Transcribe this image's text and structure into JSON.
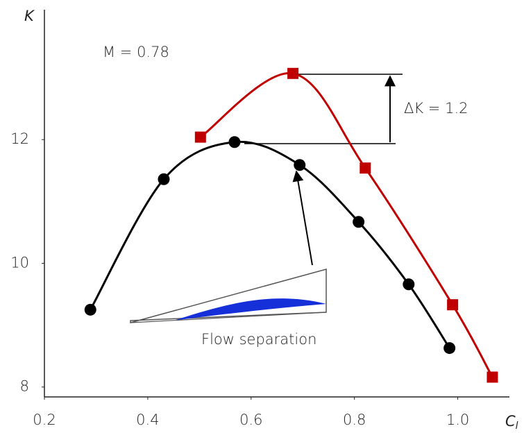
{
  "chart_data": {
    "type": "line",
    "ylabel": "K",
    "xlabel": "C",
    "xlabel_subscript": "l",
    "annotations": [
      "M = 0.78",
      "ΔK = 1.2",
      "Flow separation"
    ],
    "xlim": [
      0.2,
      1.1
    ],
    "ylim": [
      7.84,
      14.1
    ],
    "xticks": [
      0.2,
      0.4,
      0.6,
      0.8,
      {
        "value": 1.0,
        "label": "1.0"
      }
    ],
    "yticks": [
      8,
      10,
      12
    ],
    "series": [
      {
        "color": "#000000",
        "marker": "circle",
        "x": [
          0.289,
          0.431,
          0.568,
          0.694,
          0.808,
          0.905,
          0.984
        ],
        "values": [
          9.25,
          11.36,
          11.96,
          11.59,
          10.67,
          9.66,
          8.63
        ]
      },
      {
        "color": "#c00000",
        "marker": "square",
        "x": [
          0.502,
          0.681,
          0.821,
          0.99,
          1.067
        ],
        "values": [
          12.04,
          13.07,
          11.54,
          9.33,
          8.16
        ]
      }
    ]
  }
}
